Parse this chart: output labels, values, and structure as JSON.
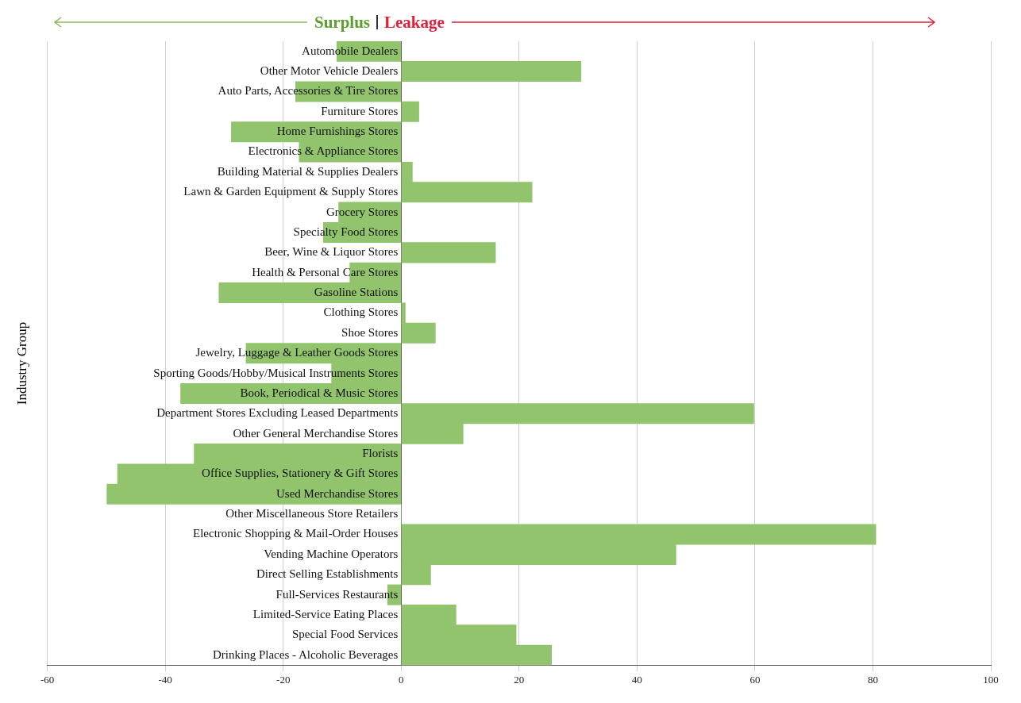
{
  "chart_data": {
    "type": "bar",
    "orientation": "horizontal",
    "ylabel": "Industry Group",
    "annotations": [
      "Surplus",
      "Leakage"
    ],
    "categories": [
      "Automobile Dealers",
      "Other Motor Vehicle Dealers",
      "Auto Parts, Accessories & Tire Stores",
      "Furniture Stores",
      "Home Furnishings Stores",
      "Electronics & Appliance Stores",
      "Building Material & Supplies Dealers",
      "Lawn & Garden Equipment & Supply Stores",
      "Grocery Stores",
      "Specialty Food Stores",
      "Beer, Wine & Liquor Stores",
      "Health & Personal Care Stores",
      "Gasoline Stations",
      "Clothing Stores",
      "Shoe Stores",
      "Jewelry, Luggage & Leather Goods Stores",
      "Sporting Goods/Hobby/Musical Instruments Stores",
      "Book, Periodical & Music Stores",
      "Department Stores Excluding Leased Departments",
      "Other General Merchandise Stores",
      "Florists",
      "Office Supplies, Stationery & Gift Stores",
      "Used Merchandise Stores",
      "Other Miscellaneous Store Retailers",
      "Electronic Shopping & Mail-Order Houses",
      "Vending Machine Operators",
      "Direct Selling Establishments",
      "Full-Services Restaurants",
      "Limited-Service Eating Places",
      "Special Food Services",
      "Drinking Places - Alcoholic Beverages"
    ],
    "values": [
      -10.9,
      30.5,
      -17.9,
      3,
      -28.8,
      -17.3,
      1.9,
      22.2,
      -10.6,
      -13.2,
      16,
      -8.7,
      -30.9,
      0.7,
      5.8,
      -26.3,
      -11.8,
      -37.4,
      59.8,
      10.5,
      -35.1,
      -48.1,
      -49.9,
      0,
      80.5,
      46.6,
      5,
      -2.3,
      9.3,
      19.5,
      25.5
    ],
    "color": "#92c46d",
    "xlim": [
      -60,
      100
    ],
    "xticks": [
      -60,
      -40,
      -20,
      0,
      20,
      40,
      60,
      80,
      100
    ],
    "grid": "x",
    "legend": false
  }
}
